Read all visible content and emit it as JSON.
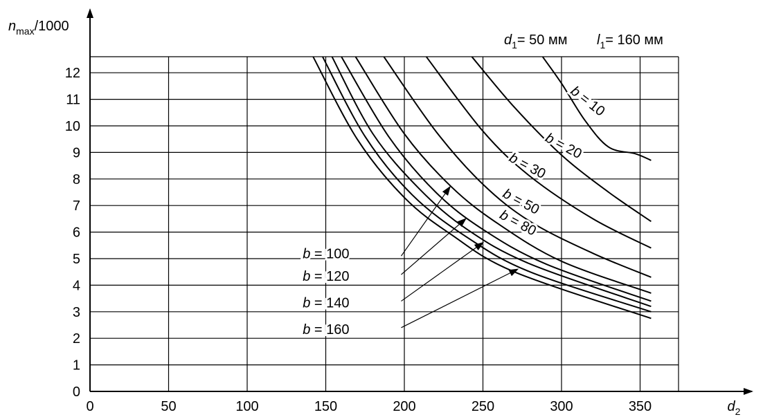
{
  "chart_data": {
    "type": "line",
    "y_axis": {
      "var": "n",
      "sub": "max",
      "suffix": "/1000"
    },
    "x_axis": {
      "var": "d",
      "sub": "2"
    },
    "params": [
      {
        "var": "d",
        "sub": "1",
        "text": "= 50 мм"
      },
      {
        "var": "l",
        "sub": "1",
        "text": "= 160 мм"
      }
    ],
    "xlim": [
      0,
      375
    ],
    "ylim": [
      0,
      12.6
    ],
    "x_ticks": [
      0,
      50,
      100,
      150,
      200,
      250,
      300,
      350
    ],
    "y_ticks": [
      0,
      1,
      2,
      3,
      4,
      5,
      6,
      7,
      8,
      9,
      10,
      11,
      12
    ],
    "grid": true,
    "series": [
      {
        "name": "b = 10",
        "points": [
          [
            288,
            12.6
          ],
          [
            300,
            11.6
          ],
          [
            315,
            10.2
          ],
          [
            330,
            9.2
          ],
          [
            347,
            8.95
          ],
          [
            357,
            8.7
          ]
        ]
      },
      {
        "name": "b = 20",
        "points": [
          [
            243,
            12.6
          ],
          [
            270,
            10.7
          ],
          [
            300,
            8.9
          ],
          [
            330,
            7.5
          ],
          [
            357,
            6.4
          ]
        ]
      },
      {
        "name": "b = 30",
        "points": [
          [
            214,
            12.6
          ],
          [
            250,
            9.8
          ],
          [
            280,
            8.1
          ],
          [
            320,
            6.5
          ],
          [
            357,
            5.4
          ]
        ]
      },
      {
        "name": "b = 50",
        "points": [
          [
            187,
            12.6
          ],
          [
            220,
            9.8
          ],
          [
            250,
            7.8
          ],
          [
            280,
            6.4
          ],
          [
            320,
            5.2
          ],
          [
            357,
            4.3
          ]
        ]
      },
      {
        "name": "b = 80",
        "points": [
          [
            169,
            12.6
          ],
          [
            200,
            9.7
          ],
          [
            230,
            7.7
          ],
          [
            260,
            6.3
          ],
          [
            300,
            4.9
          ],
          [
            357,
            3.7
          ]
        ]
      },
      {
        "name": "b = 100",
        "points": [
          [
            160,
            12.6
          ],
          [
            190,
            9.6
          ],
          [
            220,
            7.5
          ],
          [
            250,
            6.1
          ],
          [
            290,
            4.8
          ],
          [
            357,
            3.4
          ]
        ]
      },
      {
        "name": "b = 120",
        "points": [
          [
            154,
            12.6
          ],
          [
            180,
            9.7
          ],
          [
            210,
            7.6
          ],
          [
            240,
            6.1
          ],
          [
            280,
            4.8
          ],
          [
            357,
            3.2
          ]
        ]
      },
      {
        "name": "b = 140",
        "points": [
          [
            148,
            12.6
          ],
          [
            175,
            9.6
          ],
          [
            205,
            7.4
          ],
          [
            240,
            5.8
          ],
          [
            280,
            4.5
          ],
          [
            357,
            3.0
          ]
        ]
      },
      {
        "name": "b = 160",
        "points": [
          [
            142,
            12.6
          ],
          [
            170,
            9.5
          ],
          [
            200,
            7.3
          ],
          [
            230,
            5.9
          ],
          [
            270,
            4.5
          ],
          [
            357,
            2.75
          ]
        ]
      }
    ],
    "curve_labels": [
      {
        "text": "b = 10",
        "at": [
          315,
          10.8
        ],
        "rotate": 38
      },
      {
        "text": "b = 20",
        "at": [
          300,
          9.1
        ],
        "rotate": 28
      },
      {
        "text": "b = 30",
        "at": [
          277,
          8.35
        ],
        "rotate": 28
      },
      {
        "text": "b = 50",
        "at": [
          273,
          7.0
        ],
        "rotate": 28
      },
      {
        "text": "b = 80",
        "at": [
          271,
          6.2
        ],
        "rotate": 28
      }
    ],
    "callouts": [
      {
        "text": "b = 100",
        "label_at": [
          165,
          5.2
        ],
        "arrow_from": [
          198,
          5.1
        ],
        "arrow_to": [
          229,
          7.7
        ]
      },
      {
        "text": "b = 120",
        "label_at": [
          165,
          4.35
        ],
        "arrow_from": [
          198,
          4.4
        ],
        "arrow_to": [
          239,
          6.5
        ]
      },
      {
        "text": "b = 140",
        "label_at": [
          165,
          3.35
        ],
        "arrow_from": [
          198,
          3.4
        ],
        "arrow_to": [
          250,
          5.6
        ]
      },
      {
        "text": "b = 160",
        "label_at": [
          165,
          2.35
        ],
        "arrow_from": [
          198,
          2.4
        ],
        "arrow_to": [
          272,
          4.6
        ]
      }
    ]
  }
}
